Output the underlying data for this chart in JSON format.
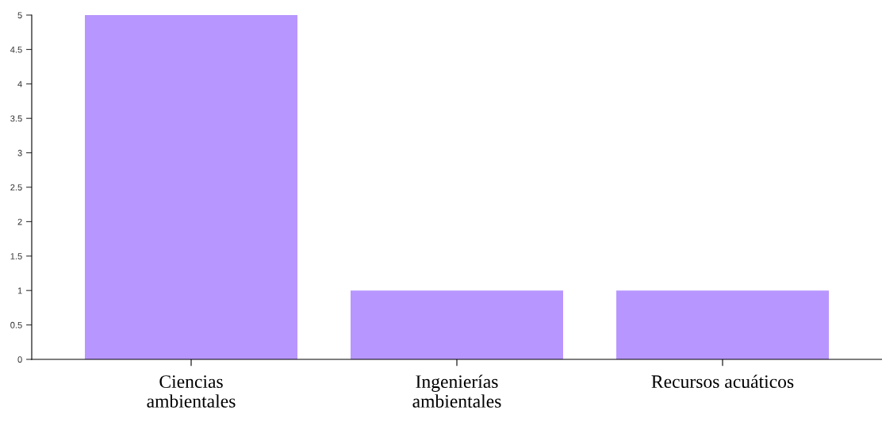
{
  "chart_data": {
    "type": "bar",
    "categories": [
      "Ciencias\nambientales",
      "Ingenierías\nambientales",
      "Recursos acuáticos"
    ],
    "values": [
      5,
      1,
      1
    ],
    "color": "#b896ff",
    "ylim": [
      0,
      5
    ],
    "yticks": [
      0,
      0.5,
      1,
      1.5,
      2,
      2.5,
      3,
      3.5,
      4,
      4.5,
      5
    ],
    "grid": false
  }
}
